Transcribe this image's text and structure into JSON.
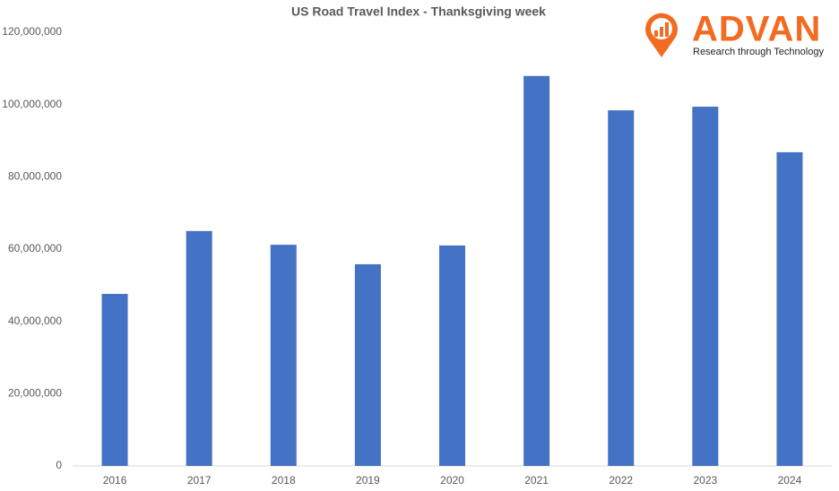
{
  "chart_data": {
    "type": "bar",
    "title": "US Road Travel Index  - Thanksgiving week",
    "categories": [
      "2016",
      "2017",
      "2018",
      "2019",
      "2020",
      "2021",
      "2022",
      "2023",
      "2024"
    ],
    "values": [
      47600000,
      65000000,
      61200000,
      55800000,
      61000000,
      107900000,
      98400000,
      99400000,
      86800000
    ],
    "color": "#4472c4",
    "ylim": [
      0,
      120000000
    ],
    "yticks": [
      0,
      {
        "value": 20000000,
        "label": "20,000,000"
      },
      {
        "value": 40000000,
        "label": "40,000,000"
      },
      {
        "value": 60000000,
        "label": "60,000,000"
      },
      {
        "value": 80000000,
        "label": "80,000,000"
      },
      {
        "value": 100000000,
        "label": "100,000,000"
      },
      {
        "value": 120000000,
        "label": "120,000,000"
      }
    ],
    "grid": false
  },
  "logo": {
    "name": "ADVAN",
    "tagline": "Research through Technology"
  }
}
